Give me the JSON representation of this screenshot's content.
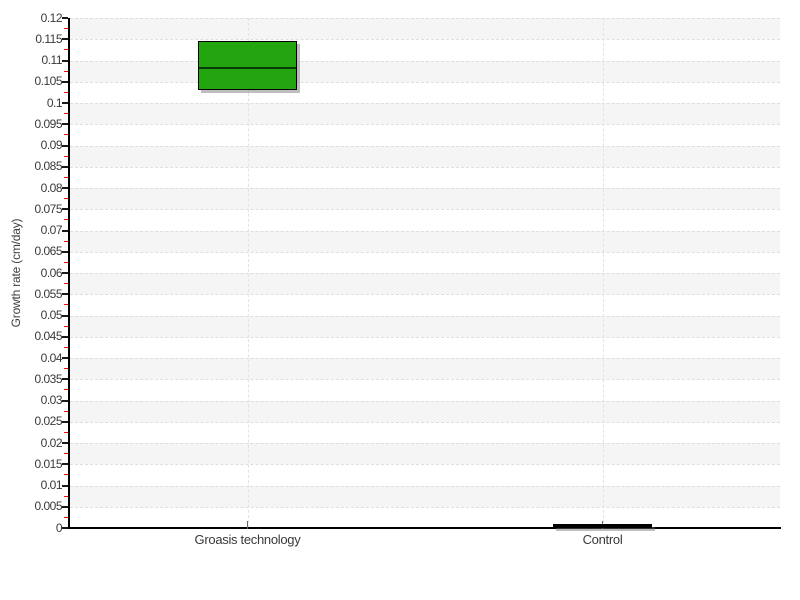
{
  "figure": {
    "background_color": "#ffffff",
    "plot_background_white": "#ffffff",
    "plot_band_gray": "#f5f5f5",
    "grid_color": "#dedede",
    "axis_color": "#000000",
    "tick_label_color": "#3a3a3a",
    "minor_tick_color": "#ff0000"
  },
  "chart_data": {
    "type": "boxplot",
    "title": "",
    "xlabel": "",
    "ylabel": "Growth rate (cm/day)",
    "ylim": [
      0,
      0.12
    ],
    "ytick_step": 0.005,
    "yminor_tick_step": 0.0025,
    "ytick_labels": [
      "0",
      "0.005",
      "0.01",
      "0.015",
      "0.02",
      "0.025",
      "0.03",
      "0.035",
      "0.04",
      "0.045",
      "0.05",
      "0.055",
      "0.06",
      "0.065",
      "0.07",
      "0.075",
      "0.08",
      "0.085",
      "0.09",
      "0.095",
      "0.1",
      "0.105",
      "0.11",
      "0.115",
      "0.12"
    ],
    "grid": "dashed, horizontal at every major tick, vertical at category centers",
    "legend": "none",
    "background_bands": "alternating white/gray stripes every 0.005 starting white at 0",
    "categories": [
      "Groasis technology",
      "Control"
    ],
    "series": [
      {
        "name": "Groasis technology",
        "q1": 0.103,
        "median": 0.1085,
        "q3": 0.1145,
        "whisker_low": null,
        "whisker_high": null,
        "fill_color": "#22a50e",
        "border_color": "#000000",
        "median_color": "#063d06"
      },
      {
        "name": "Control",
        "q1": 0.0,
        "median": 0.0005,
        "q3": 0.001,
        "whisker_low": null,
        "whisker_high": null,
        "fill_color": "#000000",
        "border_color": "#000000",
        "median_color": "#000000"
      }
    ]
  }
}
